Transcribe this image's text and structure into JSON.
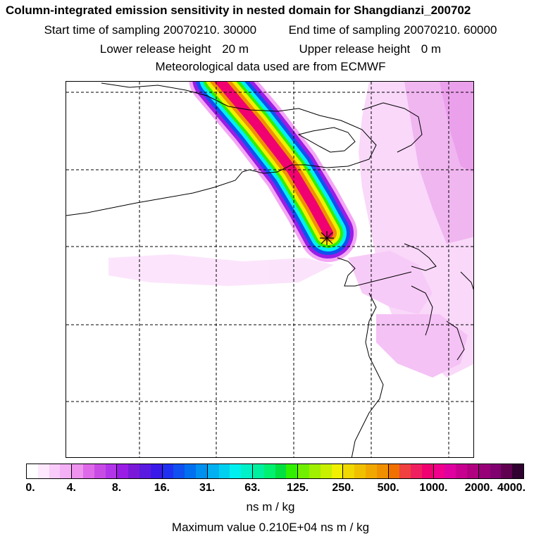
{
  "header": {
    "title": "Column-integrated emission sensitivity in nested domain for Shangdianzi_200702",
    "start_label": "Start time of sampling",
    "start_value": "20070210. 30000",
    "end_label": "End time of sampling",
    "end_value": "20070210. 60000",
    "lower_label": "Lower release height",
    "lower_value": "20 m",
    "upper_label": "Upper release height",
    "upper_value": "0 m",
    "met_line": "Meteorological data used are from ECMWF"
  },
  "colorbar": {
    "tick_labels": [
      "0.",
      "4.",
      "8.",
      "16.",
      "31.",
      "63.",
      "125.",
      "250.",
      "500.",
      "1000.",
      "2000.",
      "4000."
    ],
    "units": "ns m / kg",
    "colors": [
      "#ffffff",
      "#fde8fd",
      "#f9ccf9",
      "#f4b0f4",
      "#ee94ee",
      "#df6ae9",
      "#c94be6",
      "#b235ea",
      "#9a1de6",
      "#7a1ad8",
      "#5a1ae0",
      "#3a1ae8",
      "#2030f0",
      "#1050f0",
      "#0070f0",
      "#0090f0",
      "#00b0f0",
      "#00d0f0",
      "#00f0f0",
      "#00f0c8",
      "#00f0a0",
      "#00f070",
      "#00e040",
      "#30f000",
      "#70f000",
      "#a0f000",
      "#c8f000",
      "#f0f000",
      "#f0d800",
      "#f0c000",
      "#f0a800",
      "#f09000",
      "#f07000",
      "#f04040",
      "#f02060",
      "#f00070",
      "#f0008c",
      "#e000a0",
      "#c80090",
      "#b00080",
      "#980078",
      "#800070",
      "#600050",
      "#300030"
    ]
  },
  "max_value_line": "Maximum value  0.210E+04 ns m / kg",
  "map": {
    "receptor_marker": "star-marker",
    "plume_colors": [
      "#f4a6f4",
      "#9a1de6",
      "#1050f0",
      "#00f0f0",
      "#30f000",
      "#f0f000",
      "#f09000",
      "#f00070"
    ]
  }
}
